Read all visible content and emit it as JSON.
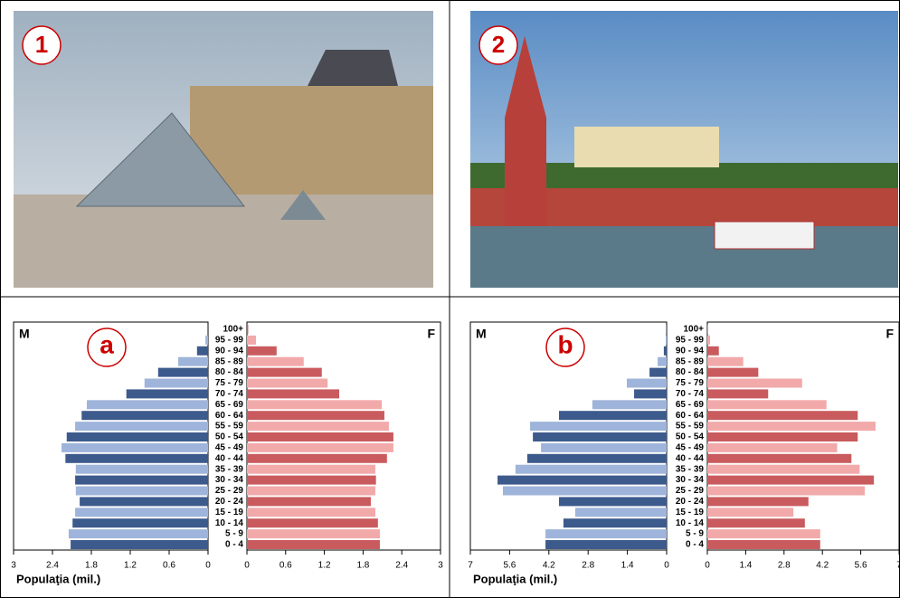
{
  "photos": [
    {
      "label": "1"
    },
    {
      "label": "2"
    }
  ],
  "chart_data": [
    {
      "type": "pyramid",
      "label": "a",
      "categories": [
        "0 - 4",
        "5 - 9",
        "10 - 14",
        "15 - 19",
        "20 - 24",
        "25 - 29",
        "30 - 34",
        "35 - 39",
        "40 - 44",
        "45 - 49",
        "50 - 54",
        "55 - 59",
        "60 - 64",
        "65 - 69",
        "70 - 74",
        "75 - 79",
        "80 - 84",
        "85 - 89",
        "90 - 94",
        "95 - 99",
        "100+"
      ],
      "series": [
        {
          "name": "M",
          "color": "#3d5a8c",
          "alt_color": "#9fb4da",
          "values": [
            2.12,
            2.15,
            2.09,
            2.05,
            1.98,
            2.04,
            2.05,
            2.04,
            2.2,
            2.26,
            2.18,
            2.05,
            1.95,
            1.87,
            1.26,
            0.98,
            0.77,
            0.46,
            0.17,
            0.04,
            0.01
          ]
        },
        {
          "name": "F",
          "color": "#c95b5e",
          "alt_color": "#f2a9aa",
          "values": [
            2.06,
            2.06,
            2.03,
            1.99,
            1.92,
            1.99,
            2.0,
            1.99,
            2.17,
            2.27,
            2.27,
            2.2,
            2.13,
            2.09,
            1.43,
            1.25,
            1.16,
            0.88,
            0.46,
            0.14,
            0.02
          ]
        }
      ],
      "xlim": [
        0,
        3
      ],
      "xticks": [
        0,
        0.6,
        1.2,
        1.8,
        2.4,
        3
      ],
      "xlabel": "Populaţia (mil.)"
    },
    {
      "type": "pyramid",
      "label": "b",
      "categories": [
        "0 - 4",
        "5 - 9",
        "10 - 14",
        "15 - 19",
        "20 - 24",
        "25 - 29",
        "30 - 34",
        "35 - 39",
        "40 - 44",
        "45 - 49",
        "50 - 54",
        "55 - 59",
        "60 - 64",
        "65 - 69",
        "70 - 74",
        "75 - 79",
        "80 - 84",
        "85 - 89",
        "90 - 94",
        "95 - 99",
        "100+"
      ],
      "series": [
        {
          "name": "M",
          "color": "#3d5a8c",
          "alt_color": "#9fb4da",
          "values": [
            4.32,
            4.32,
            3.68,
            3.26,
            3.84,
            5.84,
            6.03,
            5.39,
            4.97,
            4.48,
            4.77,
            4.87,
            3.84,
            2.65,
            1.16,
            1.42,
            0.61,
            0.32,
            0.1,
            0.03,
            0.01
          ]
        },
        {
          "name": "F",
          "color": "#c95b5e",
          "alt_color": "#f2a9aa",
          "values": [
            4.12,
            4.12,
            3.56,
            3.14,
            3.69,
            5.75,
            6.08,
            5.56,
            5.26,
            4.74,
            5.49,
            6.14,
            5.49,
            4.35,
            2.22,
            3.46,
            1.86,
            1.31,
            0.42,
            0.1,
            0.02
          ]
        }
      ],
      "xlim": [
        0,
        7
      ],
      "xticks": [
        0,
        1.4,
        2.8,
        4.2,
        5.6,
        7
      ],
      "xlabel": "Populaţia (mil.)"
    }
  ]
}
